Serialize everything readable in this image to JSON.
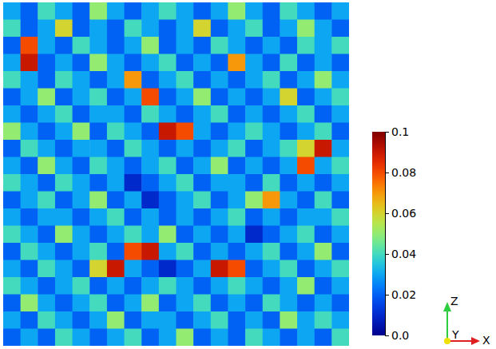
{
  "chart_data": {
    "type": "heatmap",
    "tick_labels": false,
    "values": [
      [
        0.03,
        0.02,
        0.04,
        0.03,
        0.02,
        0.05,
        0.03,
        0.02,
        0.03,
        0.04,
        0.03,
        0.02,
        0.03,
        0.05,
        0.03,
        0.02,
        0.04,
        0.03,
        0.02,
        0.03
      ],
      [
        0.04,
        0.02,
        0.03,
        0.06,
        0.02,
        0.03,
        0.02,
        0.04,
        0.03,
        0.02,
        0.03,
        0.06,
        0.02,
        0.03,
        0.04,
        0.02,
        0.03,
        0.05,
        0.03,
        0.02
      ],
      [
        0.02,
        0.08,
        0.03,
        0.02,
        0.04,
        0.03,
        0.02,
        0.03,
        0.05,
        0.02,
        0.03,
        0.02,
        0.04,
        0.03,
        0.02,
        0.03,
        0.02,
        0.04,
        0.03,
        0.04
      ],
      [
        0.03,
        0.09,
        0.02,
        0.03,
        0.02,
        0.05,
        0.03,
        0.02,
        0.03,
        0.04,
        0.02,
        0.03,
        0.02,
        0.07,
        0.03,
        0.02,
        0.04,
        0.02,
        0.03,
        0.02
      ],
      [
        0.04,
        0.03,
        0.02,
        0.04,
        0.03,
        0.02,
        0.03,
        0.07,
        0.02,
        0.03,
        0.04,
        0.02,
        0.03,
        0.02,
        0.03,
        0.04,
        0.02,
        0.03,
        0.05,
        0.03
      ],
      [
        0.02,
        0.03,
        0.05,
        0.02,
        0.03,
        0.04,
        0.02,
        0.03,
        0.08,
        0.02,
        0.03,
        0.05,
        0.02,
        0.03,
        0.02,
        0.03,
        0.06,
        0.02,
        0.03,
        0.04
      ],
      [
        0.03,
        0.02,
        0.03,
        0.04,
        0.02,
        0.03,
        0.03,
        0.02,
        0.04,
        0.03,
        0.02,
        0.03,
        0.04,
        0.02,
        0.03,
        0.02,
        0.03,
        0.04,
        0.02,
        0.03
      ],
      [
        0.05,
        0.03,
        0.02,
        0.03,
        0.05,
        0.02,
        0.04,
        0.03,
        0.02,
        0.09,
        0.08,
        0.03,
        0.02,
        0.03,
        0.04,
        0.03,
        0.02,
        0.03,
        0.04,
        0.02
      ],
      [
        0.02,
        0.04,
        0.03,
        0.02,
        0.03,
        0.03,
        0.02,
        0.04,
        0.03,
        0.02,
        0.03,
        0.02,
        0.03,
        0.04,
        0.02,
        0.03,
        0.04,
        0.06,
        0.09,
        0.03
      ],
      [
        0.03,
        0.02,
        0.05,
        0.03,
        0.02,
        0.04,
        0.03,
        0.02,
        0.03,
        0.04,
        0.02,
        0.03,
        0.05,
        0.02,
        0.03,
        0.02,
        0.03,
        0.08,
        0.03,
        0.04
      ],
      [
        0.04,
        0.03,
        0.02,
        0.04,
        0.03,
        0.02,
        0.03,
        0.01,
        0.02,
        0.03,
        0.04,
        0.02,
        0.03,
        0.03,
        0.02,
        0.04,
        0.02,
        0.03,
        0.02,
        0.03
      ],
      [
        0.02,
        0.03,
        0.04,
        0.02,
        0.03,
        0.05,
        0.02,
        0.03,
        0.01,
        0.02,
        0.03,
        0.04,
        0.02,
        0.03,
        0.05,
        0.07,
        0.03,
        0.02,
        0.04,
        0.02
      ],
      [
        0.03,
        0.02,
        0.03,
        0.03,
        0.02,
        0.03,
        0.04,
        0.02,
        0.03,
        0.02,
        0.03,
        0.02,
        0.03,
        0.04,
        0.02,
        0.03,
        0.02,
        0.03,
        0.03,
        0.04
      ],
      [
        0.04,
        0.03,
        0.02,
        0.05,
        0.03,
        0.02,
        0.03,
        0.04,
        0.03,
        0.05,
        0.02,
        0.03,
        0.02,
        0.03,
        0.01,
        0.02,
        0.03,
        0.04,
        0.02,
        0.03
      ],
      [
        0.02,
        0.04,
        0.03,
        0.02,
        0.03,
        0.04,
        0.02,
        0.08,
        0.09,
        0.03,
        0.04,
        0.02,
        0.03,
        0.02,
        0.03,
        0.04,
        0.02,
        0.03,
        0.05,
        0.02
      ],
      [
        0.03,
        0.02,
        0.04,
        0.03,
        0.02,
        0.06,
        0.09,
        0.03,
        0.02,
        0.01,
        0.02,
        0.03,
        0.09,
        0.08,
        0.02,
        0.03,
        0.04,
        0.02,
        0.03,
        0.04
      ],
      [
        0.04,
        0.03,
        0.02,
        0.03,
        0.04,
        0.02,
        0.03,
        0.02,
        0.03,
        0.04,
        0.03,
        0.02,
        0.03,
        0.04,
        0.03,
        0.02,
        0.03,
        0.05,
        0.02,
        0.03
      ],
      [
        0.02,
        0.05,
        0.03,
        0.02,
        0.03,
        0.04,
        0.02,
        0.03,
        0.05,
        0.02,
        0.03,
        0.04,
        0.02,
        0.03,
        0.02,
        0.04,
        0.03,
        0.02,
        0.03,
        0.02
      ],
      [
        0.03,
        0.02,
        0.04,
        0.03,
        0.02,
        0.03,
        0.05,
        0.02,
        0.03,
        0.03,
        0.02,
        0.03,
        0.04,
        0.02,
        0.03,
        0.02,
        0.05,
        0.03,
        0.04,
        0.03
      ],
      [
        0.02,
        0.03,
        0.02,
        0.04,
        0.03,
        0.02,
        0.03,
        0.04,
        0.02,
        0.03,
        0.05,
        0.02,
        0.03,
        0.02,
        0.04,
        0.03,
        0.02,
        0.03,
        0.02,
        0.04
      ]
    ],
    "color_range": [
      0,
      0.1
    ],
    "color_ticks": [
      {
        "value": 0,
        "label": "0.0"
      },
      0.02,
      0.04,
      0.06,
      0.08,
      0.1
    ],
    "annotations": [
      "Z",
      "Y",
      "X"
    ]
  }
}
